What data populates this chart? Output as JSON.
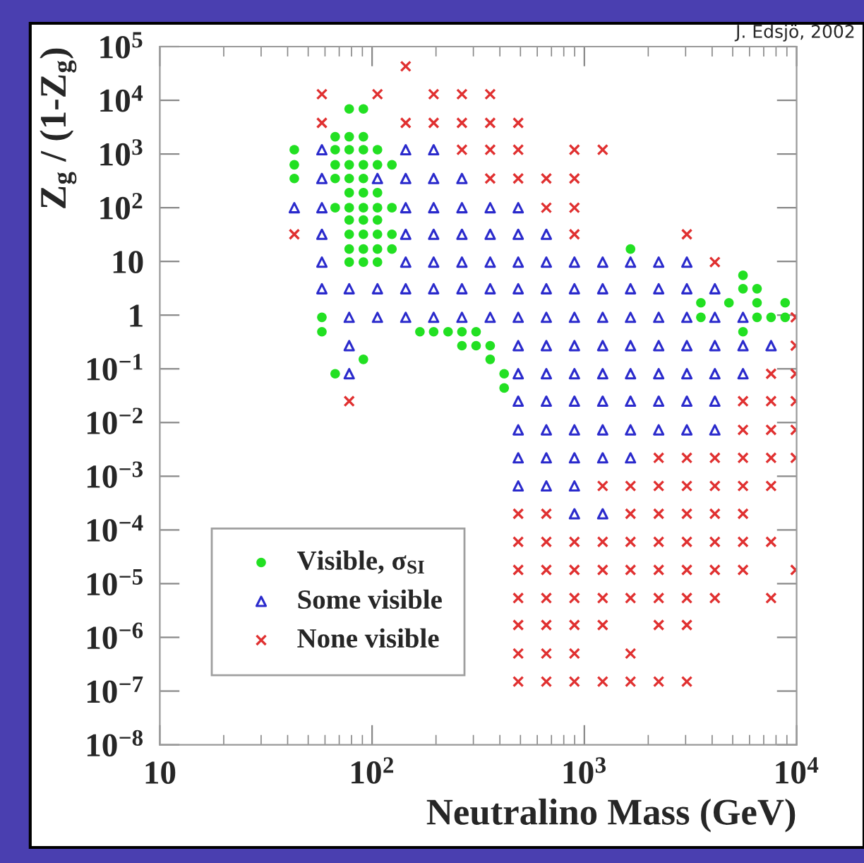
{
  "chart_data": {
    "type": "scatter",
    "xlabel": "Neutralino Mass (GeV)",
    "ylabel": "Z$_{g}$ / (1-Z$_{g}$)",
    "annotations": [
      "J. Edsjö, 2002"
    ],
    "log": "xy",
    "legend": "lower left",
    "grid": false,
    "xlim": [
      10,
      10000
    ],
    "ylim": [
      1e-08,
      100000.0
    ],
    "xticks": [
      10,
      {
        "value": 100,
        "label": "10$^{2}$"
      },
      {
        "value": 1000,
        "label": "10$^{3}$"
      },
      {
        "value": 10000,
        "label": "10$^{4}$"
      }
    ],
    "yticks": [
      {
        "value": 1e-08,
        "label": "10$^{−8}$"
      },
      {
        "value": 1e-07,
        "label": "10$^{−7}$"
      },
      {
        "value": 1e-06,
        "label": "10$^{−6}$"
      },
      {
        "value": 1e-05,
        "label": "10$^{−5}$"
      },
      {
        "value": 0.0001,
        "label": "10$^{−4}$"
      },
      {
        "value": 0.001,
        "label": "10$^{−3}$"
      },
      {
        "value": 0.01,
        "label": "10$^{−2}$"
      },
      {
        "value": 0.1,
        "label": "10$^{−1}$"
      },
      1,
      10,
      {
        "value": 100,
        "label": "10$^{2}$"
      },
      {
        "value": 1000,
        "label": "10$^{3}$"
      },
      {
        "value": 10000,
        "label": "10$^{4}$"
      },
      {
        "value": 100000,
        "label": "10$^{5}$"
      }
    ],
    "series": [
      {
        "name": "Visible, σ$_{SI}$",
        "color": "#22e022",
        "marker": "circle",
        "x": [
          78,
          91,
          67,
          78,
          91,
          43,
          67,
          78,
          91,
          106,
          43,
          67,
          78,
          91,
          106,
          124,
          43,
          67,
          78,
          91,
          78,
          91,
          106,
          67,
          78,
          91,
          106,
          124,
          78,
          91,
          106,
          78,
          91,
          106,
          124,
          78,
          91,
          106,
          124,
          1650,
          78,
          91,
          106,
          5590,
          5590,
          6510,
          3540,
          4800,
          6510,
          8830,
          58,
          3540,
          6510,
          7580,
          8830,
          58,
          168,
          195,
          228,
          265,
          309,
          5590,
          265,
          309,
          360,
          91,
          360,
          67,
          419,
          419
        ],
        "values": [
          6900,
          6900,
          2100,
          2100,
          2100,
          1200,
          1200,
          1200,
          1200,
          1200,
          630,
          630,
          630,
          630,
          630,
          630,
          350,
          350,
          350,
          350,
          190,
          190,
          190,
          100,
          100,
          100,
          100,
          100,
          59,
          59,
          59,
          32,
          32,
          32,
          32,
          17,
          17,
          17,
          17,
          17,
          9.7,
          9.7,
          9.7,
          5.5,
          3.1,
          3.1,
          1.7,
          1.7,
          1.7,
          1.7,
          0.91,
          0.91,
          0.91,
          0.91,
          0.91,
          0.49,
          0.49,
          0.49,
          0.49,
          0.49,
          0.49,
          0.49,
          0.27,
          0.27,
          0.27,
          0.15,
          0.15,
          0.081,
          0.081,
          0.044
        ]
      },
      {
        "name": "Some visible",
        "color": "#2a2acc",
        "marker": "triangle",
        "x": [
          58,
          144,
          195,
          58,
          106,
          144,
          195,
          265,
          43,
          58,
          144,
          195,
          265,
          360,
          488,
          58,
          144,
          195,
          265,
          360,
          488,
          662,
          58,
          144,
          195,
          265,
          360,
          488,
          662,
          898,
          1220,
          1650,
          2240,
          3040,
          58,
          78,
          106,
          144,
          195,
          265,
          360,
          488,
          662,
          898,
          1220,
          1650,
          2240,
          3040,
          4120,
          78,
          106,
          144,
          195,
          265,
          360,
          488,
          662,
          898,
          1220,
          1650,
          2240,
          3040,
          4120,
          5590,
          78,
          488,
          662,
          898,
          1220,
          1650,
          2240,
          3040,
          4120,
          5590,
          7580,
          78,
          488,
          662,
          898,
          1220,
          1650,
          2240,
          3040,
          4120,
          5590,
          488,
          662,
          898,
          1220,
          1650,
          2240,
          3040,
          4120,
          488,
          662,
          898,
          1220,
          1650,
          2240,
          3040,
          4120,
          488,
          662,
          898,
          1220,
          1650,
          488,
          662,
          898,
          898,
          1220
        ],
        "values": [
          1200,
          1200,
          1200,
          350,
          350,
          350,
          350,
          350,
          100,
          100,
          100,
          100,
          100,
          100,
          100,
          32,
          32,
          32,
          32,
          32,
          32,
          32,
          9.7,
          9.7,
          9.7,
          9.7,
          9.7,
          9.7,
          9.7,
          9.7,
          9.7,
          9.7,
          9.7,
          9.7,
          3.1,
          3.1,
          3.1,
          3.1,
          3.1,
          3.1,
          3.1,
          3.1,
          3.1,
          3.1,
          3.1,
          3.1,
          3.1,
          3.1,
          3.1,
          0.91,
          0.91,
          0.91,
          0.91,
          0.91,
          0.91,
          0.91,
          0.91,
          0.91,
          0.91,
          0.91,
          0.91,
          0.91,
          0.91,
          0.91,
          0.27,
          0.27,
          0.27,
          0.27,
          0.27,
          0.27,
          0.27,
          0.27,
          0.27,
          0.27,
          0.27,
          0.081,
          0.081,
          0.081,
          0.081,
          0.081,
          0.081,
          0.081,
          0.081,
          0.081,
          0.081,
          0.025,
          0.025,
          0.025,
          0.025,
          0.025,
          0.025,
          0.025,
          0.025,
          0.0073,
          0.0073,
          0.0073,
          0.0073,
          0.0073,
          0.0073,
          0.0073,
          0.0073,
          0.0022,
          0.0022,
          0.0022,
          0.0022,
          0.0022,
          0.00066,
          0.00066,
          0.00066,
          0.0002,
          0.0002
        ]
      },
      {
        "name": "None visible",
        "color": "#e03030",
        "marker": "cross",
        "x": [
          144,
          58,
          106,
          195,
          265,
          360,
          58,
          144,
          195,
          265,
          360,
          488,
          265,
          360,
          488,
          898,
          1220,
          360,
          488,
          662,
          898,
          662,
          898,
          43,
          898,
          3040,
          4120,
          9900,
          9900,
          7580,
          9900,
          78,
          5590,
          7580,
          9900,
          5590,
          7580,
          9900,
          2240,
          3040,
          4120,
          5590,
          7580,
          9900,
          1220,
          1650,
          2240,
          3040,
          4120,
          5590,
          7580,
          488,
          662,
          1650,
          2240,
          3040,
          4120,
          5590,
          488,
          662,
          898,
          1220,
          1650,
          2240,
          3040,
          4120,
          5590,
          7580,
          488,
          662,
          898,
          1220,
          1650,
          2240,
          3040,
          4120,
          5590,
          9900,
          488,
          662,
          898,
          1220,
          1650,
          2240,
          3040,
          4120,
          7580,
          488,
          662,
          898,
          1220,
          2240,
          3040,
          488,
          662,
          898,
          1650,
          488,
          662,
          898,
          1220,
          1650,
          2240,
          3040
        ],
        "values": [
          43000.0,
          13000.0,
          13000.0,
          13000.0,
          13000.0,
          13000.0,
          3800,
          3800,
          3800,
          3800,
          3800,
          3800,
          1200,
          1200,
          1200,
          1200,
          1200,
          350,
          350,
          350,
          350,
          100,
          100,
          32,
          32,
          32,
          9.7,
          0.91,
          0.27,
          0.081,
          0.081,
          0.025,
          0.025,
          0.025,
          0.025,
          0.0073,
          0.0073,
          0.0073,
          0.0022,
          0.0022,
          0.0022,
          0.0022,
          0.0022,
          0.0022,
          0.00066,
          0.00066,
          0.00066,
          0.00066,
          0.00066,
          0.00066,
          0.00066,
          0.0002,
          0.0002,
          0.0002,
          0.0002,
          0.0002,
          0.0002,
          0.0002,
          6e-05,
          6e-05,
          6e-05,
          6e-05,
          6e-05,
          6e-05,
          6e-05,
          6e-05,
          6e-05,
          6e-05,
          1.8e-05,
          1.8e-05,
          1.8e-05,
          1.8e-05,
          1.8e-05,
          1.8e-05,
          1.8e-05,
          1.8e-05,
          1.8e-05,
          1.8e-05,
          5.4e-06,
          5.4e-06,
          5.4e-06,
          5.4e-06,
          5.4e-06,
          5.4e-06,
          5.4e-06,
          5.4e-06,
          5.4e-06,
          1.7e-06,
          1.7e-06,
          1.7e-06,
          1.7e-06,
          1.7e-06,
          1.7e-06,
          5e-07,
          5e-07,
          5e-07,
          5e-07,
          1.5e-07,
          1.5e-07,
          1.5e-07,
          1.5e-07,
          1.5e-07,
          1.5e-07,
          1.5e-07
        ]
      }
    ]
  }
}
